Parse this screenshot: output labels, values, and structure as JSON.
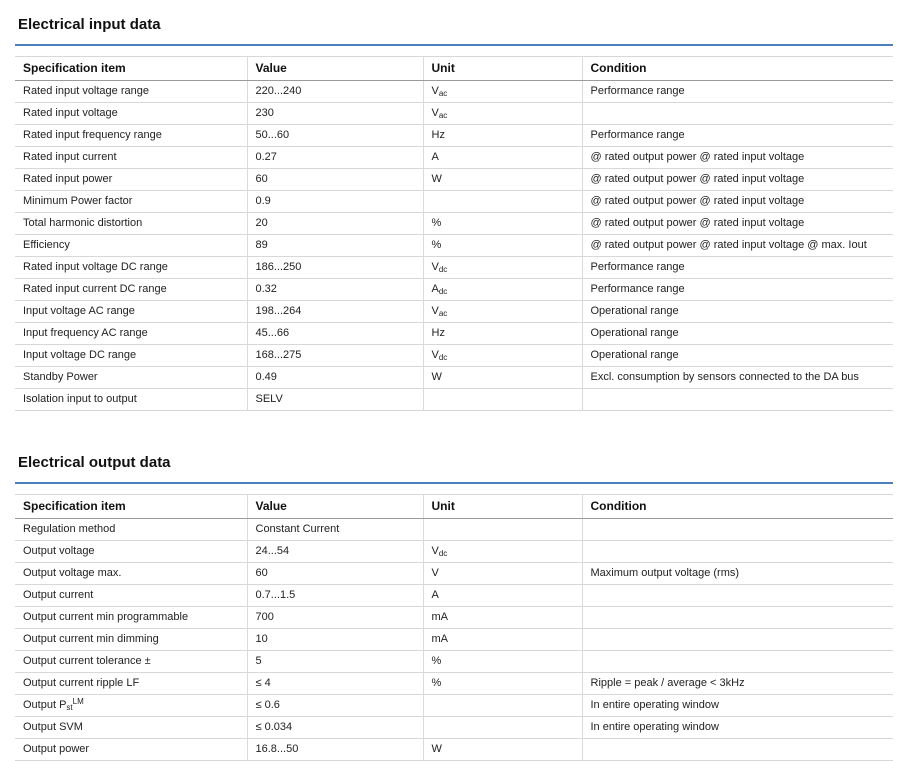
{
  "accent_color": "#4a7ebc",
  "columns": [
    "Specification item",
    "Value",
    "Unit",
    "Condition"
  ],
  "sections": [
    {
      "title": "Electrical input data",
      "columns": [
        "Specification item",
        "Value",
        "Unit",
        "Condition"
      ],
      "rows": [
        {
          "item": "Rated input voltage range",
          "value": "220...240",
          "unit": {
            "base": "V",
            "sub": "ac"
          },
          "condition": "Performance range"
        },
        {
          "item": "Rated input voltage",
          "value": "230",
          "unit": {
            "base": "V",
            "sub": "ac"
          },
          "condition": ""
        },
        {
          "item": "Rated input frequency range",
          "value": "50...60",
          "unit": "Hz",
          "condition": "Performance range"
        },
        {
          "item": "Rated input current",
          "value": "0.27",
          "unit": "A",
          "condition": "@ rated output power @ rated input voltage"
        },
        {
          "item": "Rated input power",
          "value": "60",
          "unit": "W",
          "condition": "@ rated output power @ rated input voltage"
        },
        {
          "item": "Minimum Power factor",
          "value": "0.9",
          "unit": "",
          "condition": "@ rated output power @ rated input voltage"
        },
        {
          "item": "Total harmonic distortion",
          "value": "20",
          "unit": "%",
          "condition": "@ rated output power @ rated input voltage"
        },
        {
          "item": "Efficiency",
          "value": "89",
          "unit": "%",
          "condition": "@ rated output power @ rated input voltage @ max. Iout"
        },
        {
          "item": "Rated input voltage DC range",
          "value": "186...250",
          "unit": {
            "base": "V",
            "sub": "dc"
          },
          "condition": "Performance range"
        },
        {
          "item": "Rated input current DC range",
          "value": "0.32",
          "unit": {
            "base": "A",
            "sub": "dc"
          },
          "condition": "Performance range"
        },
        {
          "item": "Input voltage AC range",
          "value": "198...264",
          "unit": {
            "base": "V",
            "sub": "ac"
          },
          "condition": "Operational range"
        },
        {
          "item": "Input frequency AC range",
          "value": "45...66",
          "unit": "Hz",
          "condition": "Operational range"
        },
        {
          "item": "Input voltage DC range",
          "value": "168...275",
          "unit": {
            "base": "V",
            "sub": "dc"
          },
          "condition": "Operational range"
        },
        {
          "item": "Standby Power",
          "value": "0.49",
          "unit": "W",
          "condition": "Excl. consumption by sensors connected to the DA bus"
        },
        {
          "item": "Isolation input to output",
          "value": "SELV",
          "unit": "",
          "condition": ""
        }
      ]
    },
    {
      "title": "Electrical output data",
      "columns": [
        "Specification item",
        "Value",
        "Unit",
        "Condition"
      ],
      "rows": [
        {
          "item": "Regulation method",
          "value": "Constant Current",
          "unit": "",
          "condition": ""
        },
        {
          "item": "Output voltage",
          "value": "24...54",
          "unit": {
            "base": "V",
            "sub": "dc"
          },
          "condition": ""
        },
        {
          "item": "Output voltage max.",
          "value": "60",
          "unit": "V",
          "condition": "Maximum output voltage (rms)"
        },
        {
          "item": "Output current",
          "value": "0.7...1.5",
          "unit": "A",
          "condition": ""
        },
        {
          "item": "Output current min programmable",
          "value": "700",
          "unit": "mA",
          "condition": ""
        },
        {
          "item": "Output current min dimming",
          "value": "10",
          "unit": "mA",
          "condition": ""
        },
        {
          "item": "Output current tolerance ±",
          "value": "5",
          "unit": "%",
          "condition": ""
        },
        {
          "item": "Output current ripple LF",
          "value": "≤ 4",
          "unit": "%",
          "condition": "Ripple = peak / average < 3kHz"
        },
        {
          "item": {
            "text": "Output P",
            "sub": "st",
            "sup": "LM"
          },
          "value": "≤ 0.6",
          "unit": "",
          "condition": "In entire operating window"
        },
        {
          "item": "Output SVM",
          "value": "≤ 0.034",
          "unit": "",
          "condition": "In entire operating window"
        },
        {
          "item": "Output power",
          "value": "16.8...50",
          "unit": "W",
          "condition": ""
        }
      ]
    }
  ]
}
